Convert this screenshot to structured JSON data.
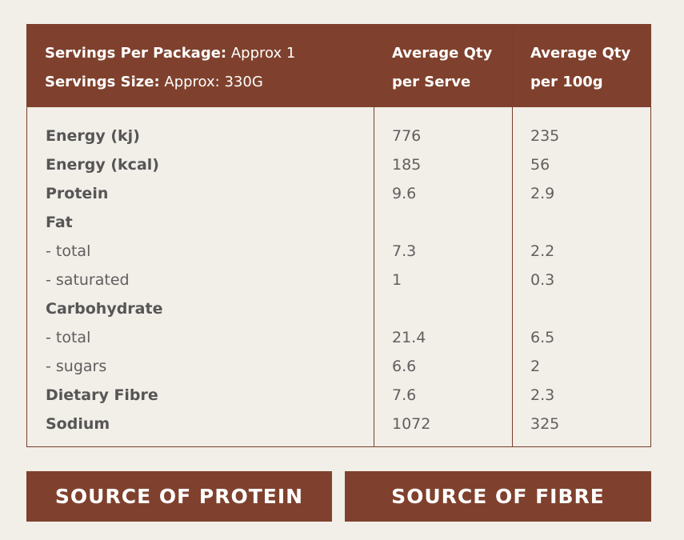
{
  "header": {
    "servings_per_package_label": "Servings Per Package:",
    "servings_per_package_value": "Approx 1",
    "serving_size_label": "Servings Size:",
    "serving_size_value": "Approx: 330G",
    "col1_line1": "Average Qty",
    "col1_line2": "per Serve",
    "col2_line1": "Average Qty",
    "col2_line2": "per 100g"
  },
  "rows": [
    {
      "name": "Energy (kj)",
      "per_serve": "776",
      "per_100g": "235",
      "style": "bold"
    },
    {
      "name": "Energy (kcal)",
      "per_serve": "185",
      "per_100g": "56",
      "style": "bold"
    },
    {
      "name": "Protein",
      "per_serve": "9.6",
      "per_100g": "2.9",
      "style": "bold"
    },
    {
      "name": "Fat",
      "per_serve": "",
      "per_100g": "",
      "style": "bold"
    },
    {
      "name": "- total",
      "per_serve": "7.3",
      "per_100g": "2.2",
      "style": "sub"
    },
    {
      "name": "- saturated",
      "per_serve": "1",
      "per_100g": "0.3",
      "style": "sub"
    },
    {
      "name": "Carbohydrate",
      "per_serve": "",
      "per_100g": "",
      "style": "bold"
    },
    {
      "name": "- total",
      "per_serve": "21.4",
      "per_100g": "6.5",
      "style": "sub"
    },
    {
      "name": "- sugars",
      "per_serve": "6.6",
      "per_100g": "2",
      "style": "sub"
    },
    {
      "name": "Dietary Fibre",
      "per_serve": "7.6",
      "per_100g": "2.3",
      "style": "bold"
    },
    {
      "name": "Sodium",
      "per_serve": "1072",
      "per_100g": "325",
      "style": "bold"
    }
  ],
  "badges": {
    "protein": "SOURCE OF PROTEIN",
    "fibre": "SOURCE OF FIBRE"
  },
  "colors": {
    "brand": "#7f412d",
    "background": "#f2eee8",
    "text": "#4f4f4f"
  }
}
